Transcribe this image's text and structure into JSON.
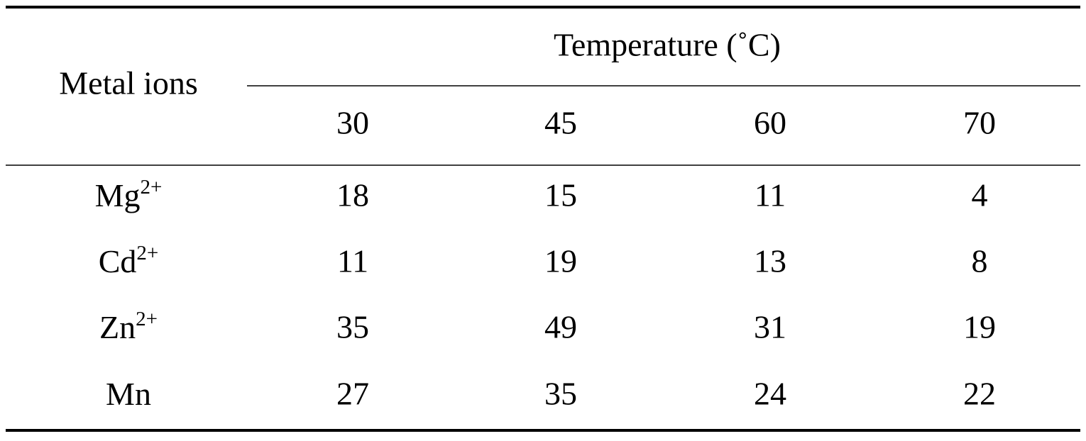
{
  "table": {
    "row_header": "Metal ions",
    "group_header": "Temperature (˚C)",
    "columns": [
      30,
      45,
      60,
      70
    ],
    "rows": [
      {
        "label": "Mg",
        "sup": "2+",
        "values": [
          18,
          15,
          11,
          4
        ]
      },
      {
        "label": "Cd",
        "sup": "2+",
        "values": [
          11,
          19,
          13,
          8
        ]
      },
      {
        "label": "Zn",
        "sup": "2+",
        "values": [
          35,
          49,
          31,
          19
        ]
      },
      {
        "label": "Mn",
        "values": [
          27,
          35,
          24,
          22
        ]
      }
    ]
  }
}
